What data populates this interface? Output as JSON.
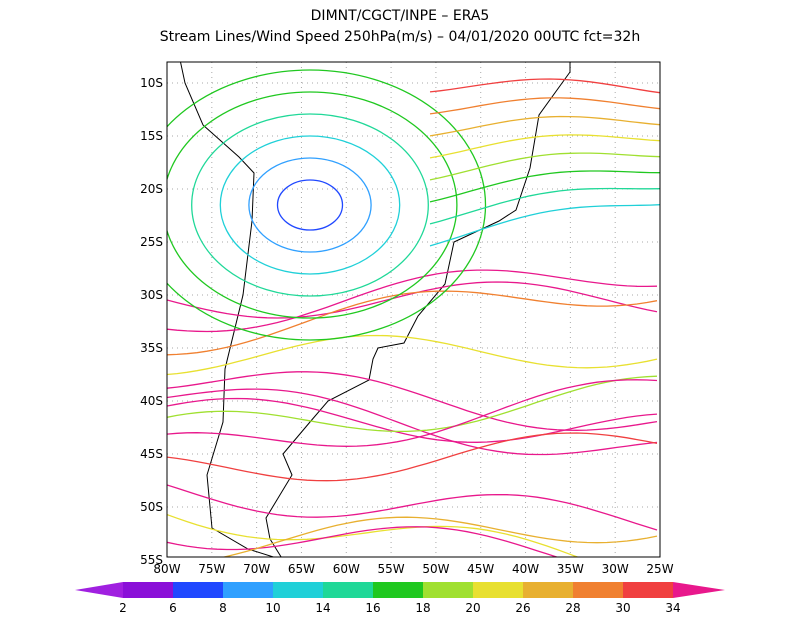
{
  "header": {
    "line1": "DIMNT/CGCT/INPE  –   ERA5",
    "line2": "Stream Lines/Wind Speed 250hPa(m/s)  –   04/01/2020 00UTC fct=32h"
  },
  "map": {
    "lat_labels": [
      "10S",
      "15S",
      "20S",
      "25S",
      "30S",
      "35S",
      "40S",
      "45S",
      "50S",
      "55S"
    ],
    "lon_labels": [
      "80W",
      "75W",
      "70W",
      "65W",
      "60W",
      "55W",
      "50W",
      "45W",
      "40W",
      "35W",
      "30W",
      "25W"
    ]
  },
  "colorbar": {
    "labels": [
      2,
      6,
      8,
      10,
      14,
      16,
      18,
      20,
      26,
      28,
      30,
      34
    ],
    "colors": [
      "#a020e0",
      "#8a10d8",
      "#2048ff",
      "#30a0ff",
      "#20d0d8",
      "#20d898",
      "#20c820",
      "#a0e030",
      "#e8e030",
      "#e8b030",
      "#f08030",
      "#f04040",
      "#e8188c"
    ]
  }
}
